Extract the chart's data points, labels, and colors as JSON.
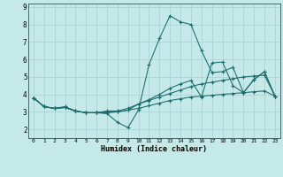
{
  "xlabel": "Humidex (Indice chaleur)",
  "xlim": [
    -0.5,
    23.5
  ],
  "ylim": [
    1.5,
    9.2
  ],
  "xticks": [
    0,
    1,
    2,
    3,
    4,
    5,
    6,
    7,
    8,
    9,
    10,
    11,
    12,
    13,
    14,
    15,
    16,
    17,
    18,
    19,
    20,
    21,
    22,
    23
  ],
  "yticks": [
    2,
    3,
    4,
    5,
    6,
    7,
    8,
    9
  ],
  "bg_color": "#c5e8e8",
  "grid_color": "#aad4d4",
  "line_color": "#1a6b6b",
  "lines": [
    {
      "x": [
        0,
        1,
        2,
        3,
        4,
        5,
        6,
        7,
        8,
        9,
        10,
        11,
        12,
        13,
        14,
        15,
        16,
        17,
        18,
        19,
        20,
        21,
        22,
        23
      ],
      "y": [
        3.8,
        3.3,
        3.2,
        3.25,
        3.05,
        2.95,
        2.95,
        3.0,
        3.0,
        3.1,
        3.2,
        3.35,
        3.5,
        3.65,
        3.75,
        3.85,
        3.9,
        3.95,
        4.0,
        4.05,
        4.1,
        4.15,
        4.2,
        3.9
      ]
    },
    {
      "x": [
        0,
        1,
        2,
        3,
        4,
        5,
        6,
        7,
        8,
        9,
        10,
        11,
        12,
        13,
        14,
        15,
        16,
        17,
        18,
        19,
        20,
        21,
        22,
        23
      ],
      "y": [
        3.8,
        3.3,
        3.2,
        3.25,
        3.05,
        2.95,
        2.95,
        2.9,
        2.4,
        2.1,
        3.1,
        5.7,
        7.2,
        8.5,
        8.15,
        8.0,
        6.5,
        5.25,
        5.3,
        5.55,
        4.1,
        4.85,
        5.3,
        3.9
      ]
    },
    {
      "x": [
        0,
        1,
        2,
        3,
        4,
        5,
        6,
        7,
        8,
        9,
        10,
        11,
        12,
        13,
        14,
        15,
        16,
        17,
        18,
        19,
        20,
        21,
        22,
        23
      ],
      "y": [
        3.8,
        3.3,
        3.2,
        3.25,
        3.05,
        2.95,
        2.95,
        2.95,
        3.0,
        3.1,
        3.45,
        3.7,
        4.0,
        4.35,
        4.6,
        4.8,
        3.85,
        5.8,
        5.85,
        4.5,
        4.1,
        4.85,
        5.3,
        3.9
      ]
    },
    {
      "x": [
        0,
        1,
        2,
        3,
        4,
        5,
        6,
        7,
        8,
        9,
        10,
        11,
        12,
        13,
        14,
        15,
        16,
        17,
        18,
        19,
        20,
        21,
        22,
        23
      ],
      "y": [
        3.8,
        3.3,
        3.2,
        3.3,
        3.05,
        2.95,
        2.95,
        3.05,
        3.05,
        3.2,
        3.45,
        3.65,
        3.85,
        4.05,
        4.25,
        4.45,
        4.6,
        4.7,
        4.8,
        4.9,
        5.0,
        5.05,
        5.1,
        3.9
      ]
    }
  ]
}
